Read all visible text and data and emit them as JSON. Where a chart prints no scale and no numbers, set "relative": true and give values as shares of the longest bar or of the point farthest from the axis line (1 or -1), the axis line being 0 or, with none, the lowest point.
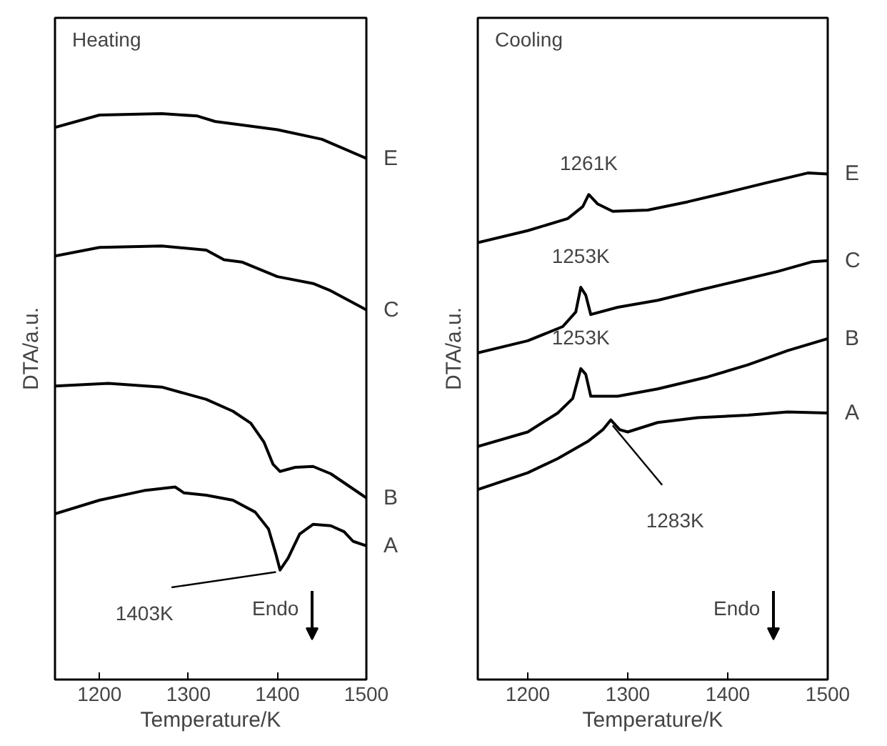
{
  "chart_data": [
    {
      "type": "line",
      "relative": true,
      "xlabel": "Temperature/K",
      "ylabel": "DTA/a.u.",
      "xlim": [
        1150,
        1500
      ],
      "xticks": [
        1200,
        1300,
        1400,
        1500
      ],
      "grid": false,
      "line_style": "solid",
      "annotations": [
        "Heating",
        "Endo",
        {
          "text": "1403K",
          "x": 1403,
          "y": 0
        }
      ],
      "series": [
        {
          "name": "E",
          "color": "#000000",
          "x": [
            1150,
            1200,
            1270,
            1310,
            1330,
            1350,
            1400,
            1450,
            1500
          ],
          "values": [
            0.97,
            0.997,
            1.0,
            0.995,
            0.983,
            0.978,
            0.965,
            0.944,
            0.902
          ]
        },
        {
          "name": "C",
          "color": "#000000",
          "x": [
            1150,
            1200,
            1270,
            1320,
            1340,
            1360,
            1400,
            1440,
            1460,
            1500
          ],
          "values": [
            0.688,
            0.707,
            0.71,
            0.701,
            0.68,
            0.675,
            0.643,
            0.628,
            0.612,
            0.57
          ]
        },
        {
          "name": "B",
          "color": "#000000",
          "x": [
            1150,
            1210,
            1270,
            1320,
            1350,
            1370,
            1385,
            1395,
            1403,
            1420,
            1440,
            1460,
            1500
          ],
          "values": [
            0.403,
            0.409,
            0.401,
            0.374,
            0.348,
            0.322,
            0.28,
            0.232,
            0.216,
            0.225,
            0.227,
            0.211,
            0.158
          ]
        },
        {
          "name": "A",
          "color": "#000000",
          "x": [
            1150,
            1200,
            1250,
            1285,
            1295,
            1320,
            1350,
            1375,
            1390,
            1398,
            1403,
            1412,
            1425,
            1440,
            1460,
            1475,
            1485,
            1500
          ],
          "values": [
            0.123,
            0.153,
            0.174,
            0.182,
            0.169,
            0.164,
            0.153,
            0.127,
            0.09,
            0.037,
            0.0,
            0.026,
            0.079,
            0.1,
            0.097,
            0.084,
            0.063,
            0.053
          ]
        }
      ]
    },
    {
      "type": "line",
      "relative": true,
      "xlabel": "Temperature/K",
      "ylabel": "DTA/a.u.",
      "xlim": [
        1150,
        1500
      ],
      "xticks": [
        1200,
        1300,
        1400,
        1500
      ],
      "grid": false,
      "line_style": "solid",
      "annotations": [
        "Cooling",
        "Endo",
        {
          "text": "1261K",
          "x": 1261,
          "y": 0.932
        },
        {
          "text": "1253K",
          "x": 1253,
          "y": 0.639
        },
        {
          "text": "1253K",
          "x": 1253,
          "y": 0.382
        },
        {
          "text": "1283K",
          "x": 1283,
          "y": 0.22
        }
      ],
      "series": [
        {
          "name": "E",
          "color": "#000000",
          "x": [
            1150,
            1200,
            1240,
            1255,
            1261,
            1270,
            1285,
            1320,
            1360,
            1400,
            1440,
            1480,
            1500
          ],
          "values": [
            0.78,
            0.818,
            0.856,
            0.894,
            0.932,
            0.902,
            0.879,
            0.883,
            0.909,
            0.939,
            0.97,
            1.0,
            0.997
          ]
        },
        {
          "name": "C",
          "color": "#000000",
          "x": [
            1150,
            1200,
            1235,
            1248,
            1253,
            1258,
            1263,
            1290,
            1330,
            1370,
            1410,
            1450,
            1485,
            1500
          ],
          "values": [
            0.432,
            0.47,
            0.515,
            0.561,
            0.639,
            0.614,
            0.553,
            0.576,
            0.598,
            0.629,
            0.659,
            0.689,
            0.72,
            0.723
          ]
        },
        {
          "name": "B",
          "color": "#000000",
          "x": [
            1150,
            1200,
            1230,
            1245,
            1253,
            1258,
            1263,
            1290,
            1330,
            1380,
            1420,
            1460,
            1500
          ],
          "values": [
            0.136,
            0.182,
            0.242,
            0.288,
            0.382,
            0.364,
            0.295,
            0.295,
            0.318,
            0.356,
            0.394,
            0.439,
            0.477
          ]
        },
        {
          "name": "A",
          "color": "#000000",
          "x": [
            1150,
            1200,
            1230,
            1260,
            1275,
            1283,
            1292,
            1300,
            1330,
            1370,
            1420,
            1460,
            1500
          ],
          "values": [
            0.0,
            0.053,
            0.098,
            0.152,
            0.189,
            0.22,
            0.189,
            0.182,
            0.212,
            0.227,
            0.235,
            0.245,
            0.242
          ]
        }
      ]
    }
  ]
}
